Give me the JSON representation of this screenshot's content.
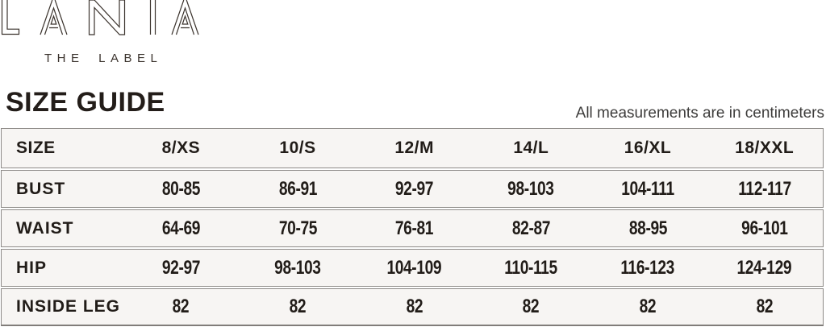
{
  "brand": {
    "name": "LANIA",
    "tagline": "THE LABEL"
  },
  "header": {
    "title": "SIZE GUIDE",
    "note": "All measurements are in centimeters"
  },
  "table": {
    "columns": [
      "SIZE",
      "8/XS",
      "10/S",
      "12/M",
      "14/L",
      "16/XL",
      "18/XXL"
    ],
    "rows": [
      {
        "label": "BUST",
        "values": [
          "80-85",
          "86-91",
          "92-97",
          "98-103",
          "104-111",
          "112-117"
        ]
      },
      {
        "label": "WAIST",
        "values": [
          "64-69",
          "70-75",
          "76-81",
          "82-87",
          "88-95",
          "96-101"
        ]
      },
      {
        "label": "HIP",
        "values": [
          "92-97",
          "98-103",
          "104-109",
          "110-115",
          "116-123",
          "124-129"
        ]
      },
      {
        "label": "INSIDE LEG",
        "values": [
          "82",
          "82",
          "82",
          "82",
          "82",
          "82"
        ]
      }
    ]
  },
  "colors": {
    "text": "#211c18",
    "logo_stroke": "#3b332d",
    "cell_background": "#f7f5f3",
    "border": "#8d8a87",
    "note_text": "#3e3d3c"
  }
}
